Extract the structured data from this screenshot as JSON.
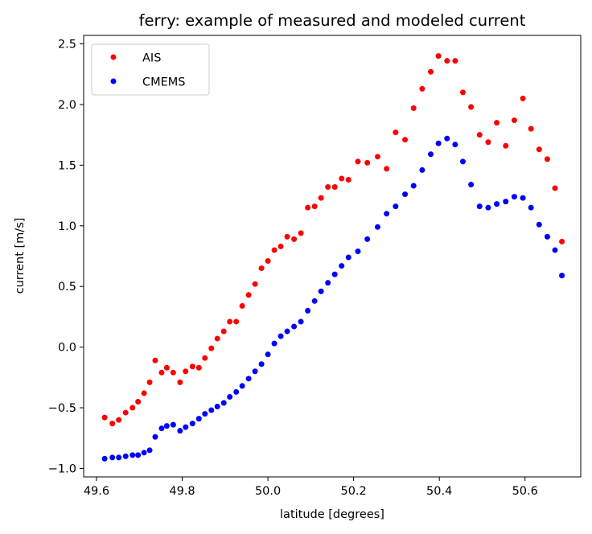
{
  "chart_data": {
    "type": "scatter",
    "title": "ferry: example of measured and modeled current",
    "xlabel": "latitude [degrees]",
    "ylabel": "current [m/s]",
    "xlim": [
      49.57,
      50.73
    ],
    "ylim": [
      -1.07,
      2.57
    ],
    "xticks": [
      49.6,
      49.8,
      50.0,
      50.2,
      50.4,
      50.6
    ],
    "xtick_labels": [
      "49.6",
      "49.8",
      "50.0",
      "50.2",
      "50.4",
      "50.6"
    ],
    "yticks": [
      -1.0,
      -0.5,
      0.0,
      0.5,
      1.0,
      1.5,
      2.0,
      2.5
    ],
    "ytick_labels": [
      "−1.0",
      "−0.5",
      "0.0",
      "0.5",
      "1.0",
      "1.5",
      "2.0",
      "2.5"
    ],
    "grid": false,
    "legend_position": "top-left",
    "series": [
      {
        "name": "AIS",
        "color": "#ff0000",
        "points": [
          [
            49.619,
            -0.58
          ],
          [
            49.637,
            -0.63
          ],
          [
            49.652,
            -0.6
          ],
          [
            49.668,
            -0.54
          ],
          [
            49.684,
            -0.5
          ],
          [
            49.697,
            -0.45
          ],
          [
            49.711,
            -0.38
          ],
          [
            49.724,
            -0.29
          ],
          [
            49.737,
            -0.11
          ],
          [
            49.752,
            -0.21
          ],
          [
            49.764,
            -0.17
          ],
          [
            49.779,
            -0.21
          ],
          [
            49.795,
            -0.29
          ],
          [
            49.808,
            -0.2
          ],
          [
            49.824,
            -0.16
          ],
          [
            49.839,
            -0.17
          ],
          [
            49.853,
            -0.09
          ],
          [
            49.868,
            -0.01
          ],
          [
            49.882,
            0.07
          ],
          [
            49.897,
            0.13
          ],
          [
            49.911,
            0.21
          ],
          [
            49.926,
            0.21
          ],
          [
            49.94,
            0.34
          ],
          [
            49.955,
            0.43
          ],
          [
            49.97,
            0.52
          ],
          [
            49.985,
            0.65
          ],
          [
            50.0,
            0.71
          ],
          [
            50.015,
            0.8
          ],
          [
            50.03,
            0.83
          ],
          [
            50.045,
            0.91
          ],
          [
            50.061,
            0.89
          ],
          [
            50.077,
            0.94
          ],
          [
            50.093,
            1.15
          ],
          [
            50.109,
            1.16
          ],
          [
            50.124,
            1.23
          ],
          [
            50.14,
            1.32
          ],
          [
            50.156,
            1.32
          ],
          [
            50.172,
            1.39
          ],
          [
            50.188,
            1.38
          ],
          [
            50.21,
            1.53
          ],
          [
            50.232,
            1.52
          ],
          [
            50.256,
            1.57
          ],
          [
            50.277,
            1.47
          ],
          [
            50.298,
            1.77
          ],
          [
            50.32,
            1.71
          ],
          [
            50.34,
            1.97
          ],
          [
            50.36,
            2.13
          ],
          [
            50.38,
            2.27
          ],
          [
            50.398,
            2.4
          ],
          [
            50.418,
            2.36
          ],
          [
            50.437,
            2.36
          ],
          [
            50.455,
            2.1
          ],
          [
            50.474,
            1.98
          ],
          [
            50.494,
            1.75
          ],
          [
            50.514,
            1.69
          ],
          [
            50.534,
            1.85
          ],
          [
            50.555,
            1.66
          ],
          [
            50.575,
            1.87
          ],
          [
            50.595,
            2.05
          ],
          [
            50.614,
            1.8
          ],
          [
            50.633,
            1.63
          ],
          [
            50.652,
            1.55
          ],
          [
            50.67,
            1.31
          ],
          [
            50.686,
            0.87
          ]
        ]
      },
      {
        "name": "CMEMS",
        "color": "#0000ff",
        "points": [
          [
            49.619,
            -0.92
          ],
          [
            49.637,
            -0.91
          ],
          [
            49.652,
            -0.91
          ],
          [
            49.668,
            -0.9
          ],
          [
            49.684,
            -0.89
          ],
          [
            49.697,
            -0.89
          ],
          [
            49.711,
            -0.87
          ],
          [
            49.724,
            -0.85
          ],
          [
            49.737,
            -0.74
          ],
          [
            49.752,
            -0.67
          ],
          [
            49.764,
            -0.65
          ],
          [
            49.779,
            -0.64
          ],
          [
            49.795,
            -0.69
          ],
          [
            49.808,
            -0.66
          ],
          [
            49.824,
            -0.63
          ],
          [
            49.839,
            -0.59
          ],
          [
            49.853,
            -0.55
          ],
          [
            49.868,
            -0.52
          ],
          [
            49.882,
            -0.49
          ],
          [
            49.897,
            -0.46
          ],
          [
            49.911,
            -0.41
          ],
          [
            49.926,
            -0.37
          ],
          [
            49.94,
            -0.32
          ],
          [
            49.955,
            -0.26
          ],
          [
            49.97,
            -0.2
          ],
          [
            49.985,
            -0.14
          ],
          [
            50.0,
            -0.06
          ],
          [
            50.015,
            0.03
          ],
          [
            50.03,
            0.09
          ],
          [
            50.045,
            0.13
          ],
          [
            50.061,
            0.17
          ],
          [
            50.077,
            0.21
          ],
          [
            50.093,
            0.3
          ],
          [
            50.109,
            0.38
          ],
          [
            50.124,
            0.46
          ],
          [
            50.14,
            0.53
          ],
          [
            50.156,
            0.6
          ],
          [
            50.172,
            0.67
          ],
          [
            50.188,
            0.74
          ],
          [
            50.21,
            0.79
          ],
          [
            50.232,
            0.89
          ],
          [
            50.256,
            0.99
          ],
          [
            50.277,
            1.1
          ],
          [
            50.298,
            1.16
          ],
          [
            50.32,
            1.26
          ],
          [
            50.34,
            1.33
          ],
          [
            50.36,
            1.46
          ],
          [
            50.38,
            1.59
          ],
          [
            50.398,
            1.68
          ],
          [
            50.418,
            1.72
          ],
          [
            50.437,
            1.67
          ],
          [
            50.455,
            1.53
          ],
          [
            50.474,
            1.34
          ],
          [
            50.494,
            1.16
          ],
          [
            50.514,
            1.15
          ],
          [
            50.534,
            1.18
          ],
          [
            50.555,
            1.2
          ],
          [
            50.575,
            1.24
          ],
          [
            50.595,
            1.23
          ],
          [
            50.614,
            1.15
          ],
          [
            50.633,
            1.01
          ],
          [
            50.652,
            0.91
          ],
          [
            50.67,
            0.8
          ],
          [
            50.686,
            0.59
          ]
        ]
      }
    ]
  }
}
